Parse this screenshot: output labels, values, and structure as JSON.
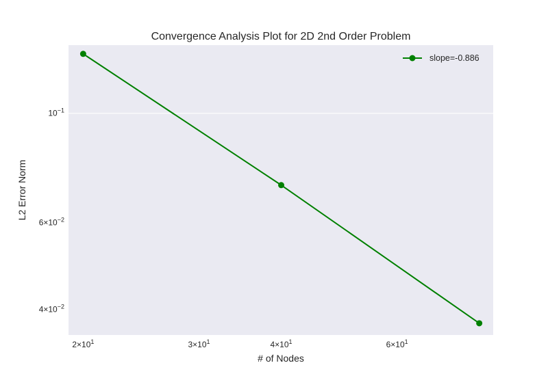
{
  "chart_data": {
    "type": "line",
    "title": "Convergence Analysis Plot for 2D 2nd Order Problem",
    "xlabel": "# of Nodes",
    "ylabel": "L2 Error Norm",
    "xscale": "log",
    "yscale": "log",
    "xlim": [
      19,
      84
    ],
    "ylim": [
      0.0355,
      0.1375
    ],
    "grid": true,
    "legend_position": "top-right",
    "x_ticks": [
      {
        "value": 20,
        "base": "2×10",
        "exp": "1"
      },
      {
        "value": 30,
        "base": "3×10",
        "exp": "1"
      },
      {
        "value": 40,
        "base": "4×10",
        "exp": "1"
      },
      {
        "value": 60,
        "base": "6×10",
        "exp": "1"
      }
    ],
    "y_ticks": [
      {
        "value": 0.1,
        "base": "10",
        "exp": "−1"
      },
      {
        "value": 0.06,
        "base": "6×10",
        "exp": "−2"
      },
      {
        "value": 0.04,
        "base": "4×10",
        "exp": "−2"
      }
    ],
    "series": [
      {
        "name": "slope=-0.886",
        "color": "#008000",
        "marker": "circle",
        "x": [
          20,
          40,
          80
        ],
        "y": [
          0.132,
          0.0715,
          0.0375
        ]
      }
    ]
  },
  "colors": {
    "plot_background": "#eaeaf2",
    "grid": "#ffffff",
    "text": "#262626"
  }
}
